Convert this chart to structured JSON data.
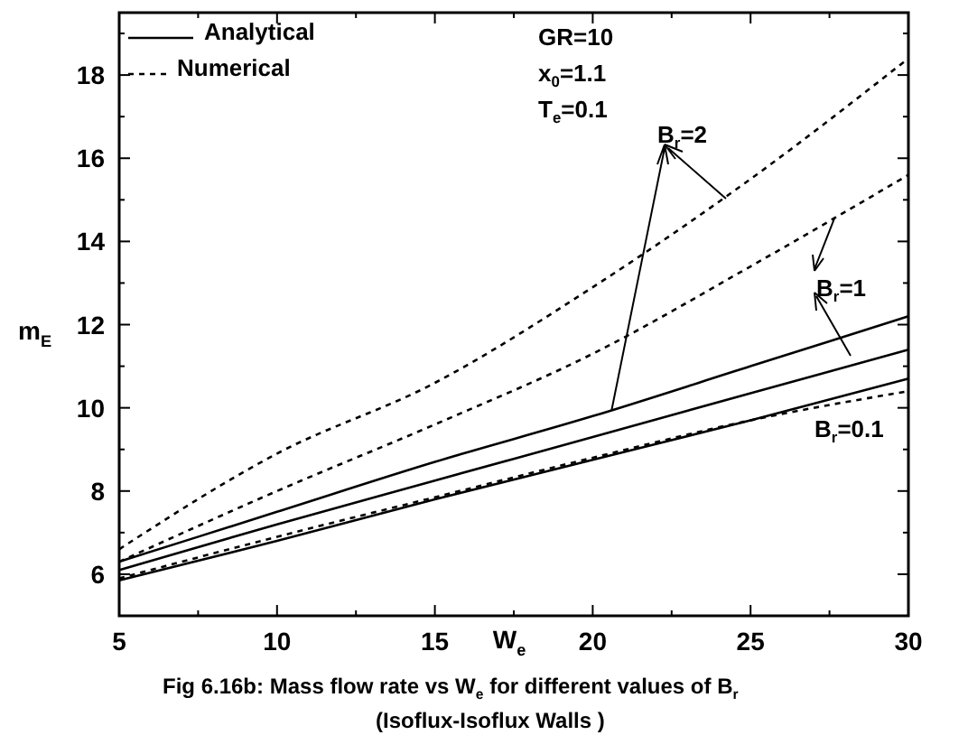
{
  "chart_data": {
    "type": "line",
    "xlabel": "W$_{e}$",
    "ylabel": "m$_{E}$",
    "x": [
      5,
      10,
      15,
      20,
      25,
      30
    ],
    "xlim": [
      5,
      30
    ],
    "xticks": [
      5,
      {
        "value": 7.5,
        "label": null
      },
      10,
      {
        "value": 12.5,
        "label": null
      },
      15,
      {
        "value": 17.5,
        "label": null
      },
      20,
      {
        "value": 22.5,
        "label": null
      },
      25,
      {
        "value": 27.5,
        "label": null
      },
      30
    ],
    "ylim": [
      5,
      19.5
    ],
    "yticks": [
      {
        "value": 5,
        "label": null
      },
      6,
      {
        "value": 7,
        "label": null
      },
      8,
      {
        "value": 9,
        "label": null
      },
      10,
      {
        "value": 11,
        "label": null
      },
      12,
      {
        "value": 13,
        "label": null
      },
      14,
      {
        "value": 15,
        "label": null
      },
      16,
      {
        "value": 17,
        "label": null
      },
      18,
      {
        "value": 19,
        "label": null
      }
    ],
    "grid": false,
    "legend": "top left",
    "series": [
      {
        "name": "Analytical",
        "color": "#000000",
        "line_style": "solid",
        "values": [
          6.3,
          7.5,
          8.7,
          9.8,
          11.0,
          12.2
        ]
      },
      {
        "color": "#000000",
        "line_style": "solid",
        "values": [
          6.1,
          7.2,
          8.25,
          9.3,
          10.35,
          11.4
        ]
      },
      {
        "color": "#000000",
        "line_style": "solid",
        "values": [
          5.85,
          6.8,
          7.8,
          8.75,
          9.7,
          10.7
        ]
      },
      {
        "name": "Numerical",
        "color": "#000000",
        "line_style": "dashed",
        "values": [
          6.6,
          8.9,
          10.6,
          12.9,
          15.5,
          18.4
        ]
      },
      {
        "color": "#000000",
        "line_style": "dashed",
        "values": [
          6.3,
          8.0,
          9.6,
          11.3,
          13.4,
          15.6
        ]
      },
      {
        "color": "#000000",
        "line_style": "dashed",
        "values": [
          5.9,
          6.9,
          7.85,
          8.8,
          9.7,
          10.4
        ]
      }
    ],
    "annotations": [
      "GR=10",
      "x$_{0}$=1.1",
      "T$_{e}$=0.1",
      {
        "text": "B$_{r}$=2",
        "x": 20.6,
        "y": 9.95
      },
      "B$_{r}$=1",
      "B$_{r}$=0.1",
      "Fig 6.16b:   Mass flow rate vs W$_{e}$ for different values of B$_{r}$",
      "(Isoflux-Isoflux Walls )"
    ]
  }
}
